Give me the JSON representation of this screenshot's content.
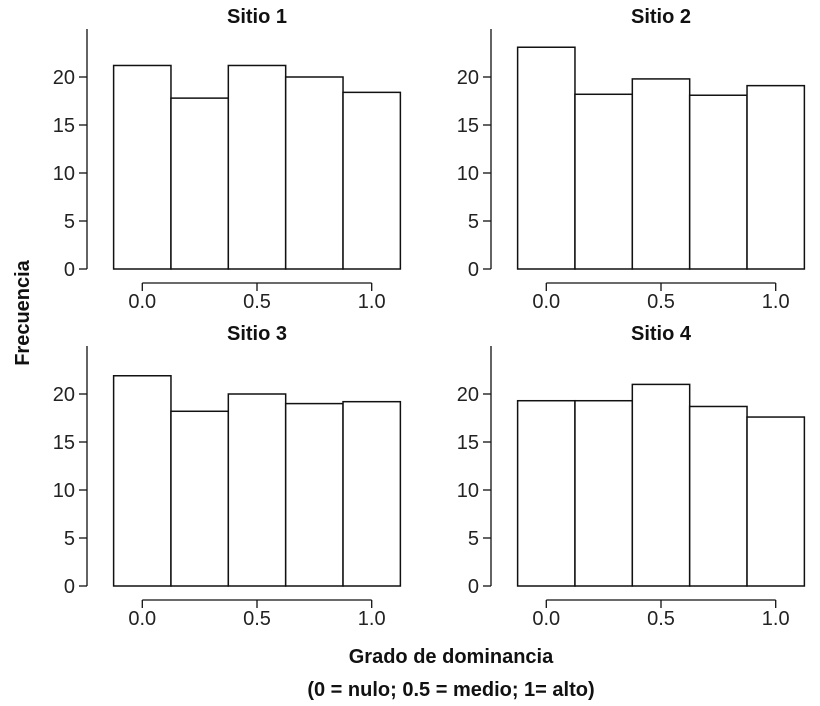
{
  "y_axis_label": "Frecuencia",
  "x_axis_label_line1": "Grado de dominancia",
  "x_axis_label_line2": "(0 = nulo; 0.5 = medio; 1= alto)",
  "colors": {
    "bar_fill": "#ffffff",
    "bar_stroke": "#111111",
    "text": "#111111"
  },
  "chart_data": [
    {
      "type": "bar",
      "title": "Sitio 1",
      "bin_centers": [
        0.0,
        0.25,
        0.5,
        0.75,
        1.0
      ],
      "values": [
        21.2,
        17.8,
        21.2,
        20.0,
        18.4
      ],
      "xticks": [
        0.0,
        0.5,
        1.0
      ],
      "xtick_labels": [
        "0.0",
        "0.5",
        "1.0"
      ],
      "yticks": [
        0,
        5,
        10,
        15,
        20
      ],
      "ytick_labels": [
        "0",
        "5",
        "10",
        "15",
        "20"
      ],
      "ylim": [
        0,
        25
      ],
      "xlim": [
        -0.18,
        1.18
      ],
      "grid": false
    },
    {
      "type": "bar",
      "title": "Sitio 2",
      "bin_centers": [
        0.0,
        0.25,
        0.5,
        0.75,
        1.0
      ],
      "values": [
        23.1,
        18.2,
        19.8,
        18.1,
        19.1
      ],
      "xticks": [
        0.0,
        0.5,
        1.0
      ],
      "xtick_labels": [
        "0.0",
        "0.5",
        "1.0"
      ],
      "yticks": [
        0,
        5,
        10,
        15,
        20
      ],
      "ytick_labels": [
        "0",
        "5",
        "10",
        "15",
        "20"
      ],
      "ylim": [
        0,
        25
      ],
      "xlim": [
        -0.18,
        1.18
      ],
      "grid": false
    },
    {
      "type": "bar",
      "title": "Sitio 3",
      "bin_centers": [
        0.0,
        0.25,
        0.5,
        0.75,
        1.0
      ],
      "values": [
        21.9,
        18.2,
        20.0,
        19.0,
        19.2
      ],
      "xticks": [
        0.0,
        0.5,
        1.0
      ],
      "xtick_labels": [
        "0.0",
        "0.5",
        "1.0"
      ],
      "yticks": [
        0,
        5,
        10,
        15,
        20
      ],
      "ytick_labels": [
        "0",
        "5",
        "10",
        "15",
        "20"
      ],
      "ylim": [
        0,
        25
      ],
      "xlim": [
        -0.18,
        1.18
      ],
      "grid": false
    },
    {
      "type": "bar",
      "title": "Sitio 4",
      "bin_centers": [
        0.0,
        0.25,
        0.5,
        0.75,
        1.0
      ],
      "values": [
        19.3,
        19.3,
        21.0,
        18.7,
        17.6
      ],
      "xticks": [
        0.0,
        0.5,
        1.0
      ],
      "xtick_labels": [
        "0.0",
        "0.5",
        "1.0"
      ],
      "yticks": [
        0,
        5,
        10,
        15,
        20
      ],
      "ytick_labels": [
        "0",
        "5",
        "10",
        "15",
        "20"
      ],
      "ylim": [
        0,
        25
      ],
      "xlim": [
        -0.18,
        1.18
      ],
      "grid": false
    }
  ]
}
